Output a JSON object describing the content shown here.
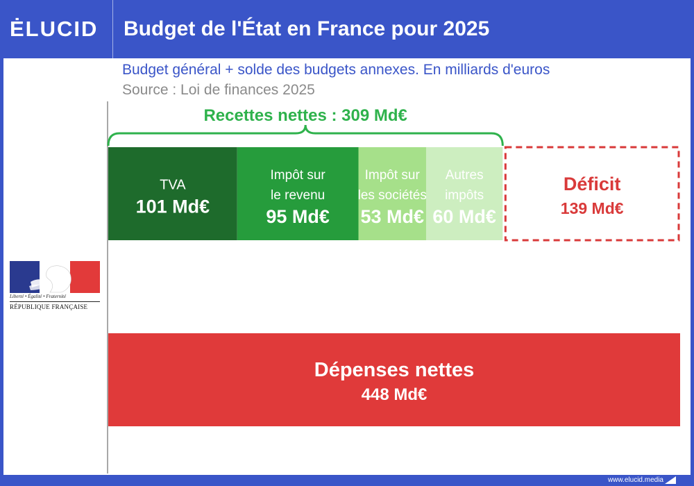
{
  "brand": {
    "name": "ĖLUCID"
  },
  "colors": {
    "brand_blue": "#3a55c8",
    "expense_red": "#e03a3a",
    "deficit_red": "#d93a3a",
    "recettes_green": "#2fb24c",
    "segment_colors": [
      "#1e6b2c",
      "#269c3c",
      "#a6e08a",
      "#cdeec0"
    ],
    "segment_text_colors": [
      "#ffffff",
      "#ffffff",
      "#ffffff",
      "#ffffff"
    ]
  },
  "header": {
    "title": "Budget de l'État en France pour 2025"
  },
  "subtitle": "Budget général + solde des budgets annexes. En milliards d'euros",
  "source": "Source : Loi de finances 2025",
  "logo": {
    "motto": "Liberté • Égalité • Fraternité",
    "name": "RÉPUBLIQUE FRANÇAISE"
  },
  "footer": {
    "url": "www.elucid.media"
  },
  "chart_data": {
    "type": "bar",
    "title": "Budget de l'État en France pour 2025",
    "subtitle": "Budget général + solde des budgets annexes. En milliards d'euros",
    "unit": "Md€",
    "recettes": {
      "label": "Recettes nettes : 309 Md€",
      "total": 309,
      "segments": [
        {
          "name_lines": [
            "TVA"
          ],
          "value": 101,
          "value_label": "101 Md€"
        },
        {
          "name_lines": [
            "Impôt sur",
            "le revenu"
          ],
          "value": 95,
          "value_label": "95 Md€"
        },
        {
          "name_lines": [
            "Impôt sur",
            "les sociétés"
          ],
          "value": 53,
          "value_label": "53 Md€"
        },
        {
          "name_lines": [
            "Autres",
            "impôts"
          ],
          "value": 60,
          "value_label": "60 Md€"
        }
      ]
    },
    "deficit": {
      "name": "Déficit",
      "value": 139,
      "value_label": "139 Md€"
    },
    "depenses": {
      "name": "Dépenses nettes",
      "value": 448,
      "value_label": "448 Md€"
    }
  }
}
